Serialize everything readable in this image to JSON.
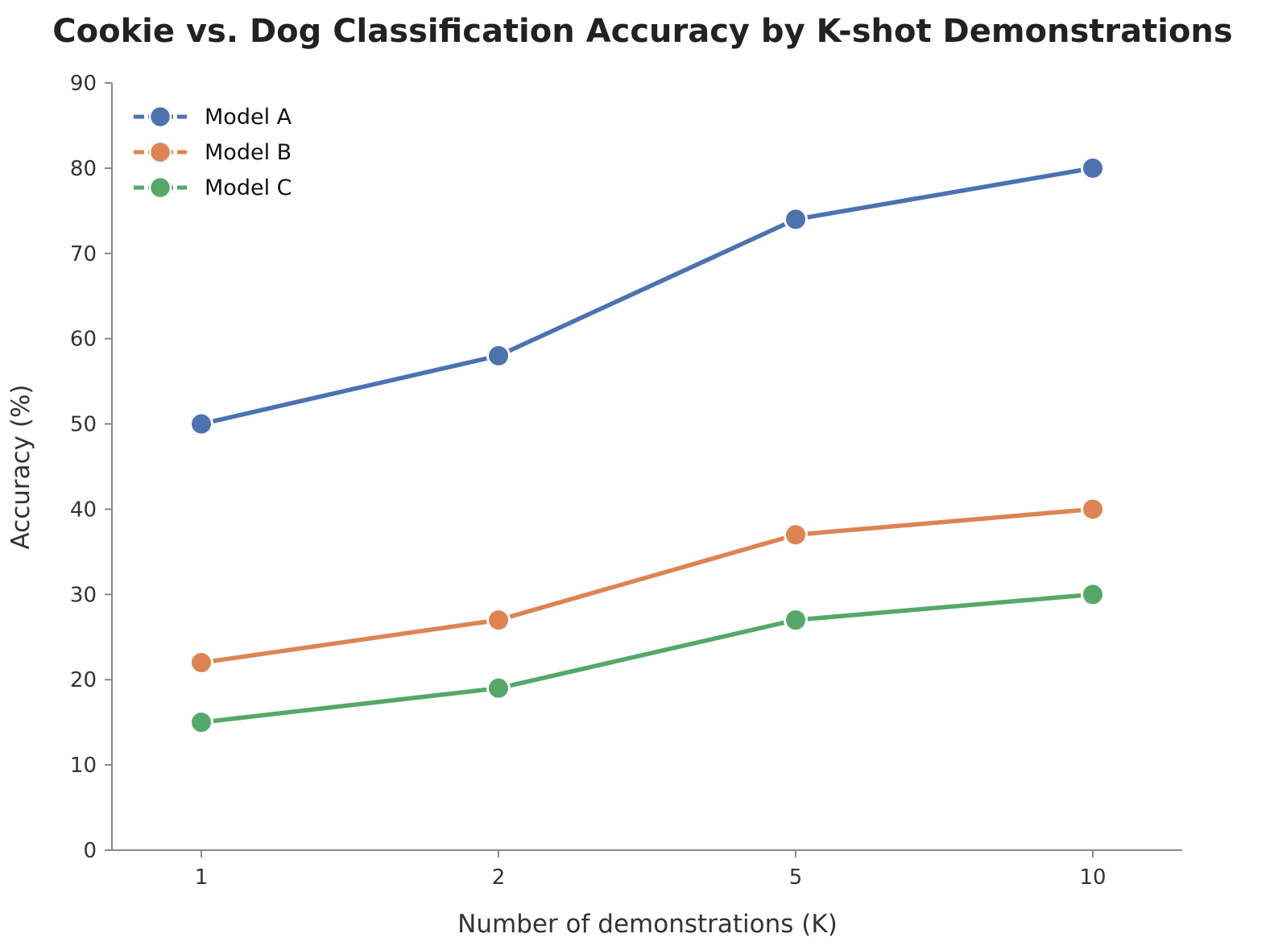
{
  "chart_data": {
    "type": "line",
    "title": "Cookie vs. Dog Classification Accuracy by K-shot Demonstrations",
    "xlabel": "Number of demonstrations (K)",
    "ylabel": "Accuracy (%)",
    "categories": [
      "1",
      "2",
      "5",
      "10"
    ],
    "ylim": [
      0,
      90
    ],
    "yticks": [
      0,
      10,
      20,
      30,
      40,
      50,
      60,
      70,
      80,
      90
    ],
    "grid": false,
    "legend_position": "top-left",
    "series": [
      {
        "name": "Model A",
        "color": "#4C72B0",
        "values": [
          50,
          58,
          74,
          80
        ]
      },
      {
        "name": "Model B",
        "color": "#DD8452",
        "values": [
          22,
          27,
          37,
          40
        ]
      },
      {
        "name": "Model C",
        "color": "#55A868",
        "values": [
          15,
          19,
          27,
          30
        ]
      }
    ]
  }
}
